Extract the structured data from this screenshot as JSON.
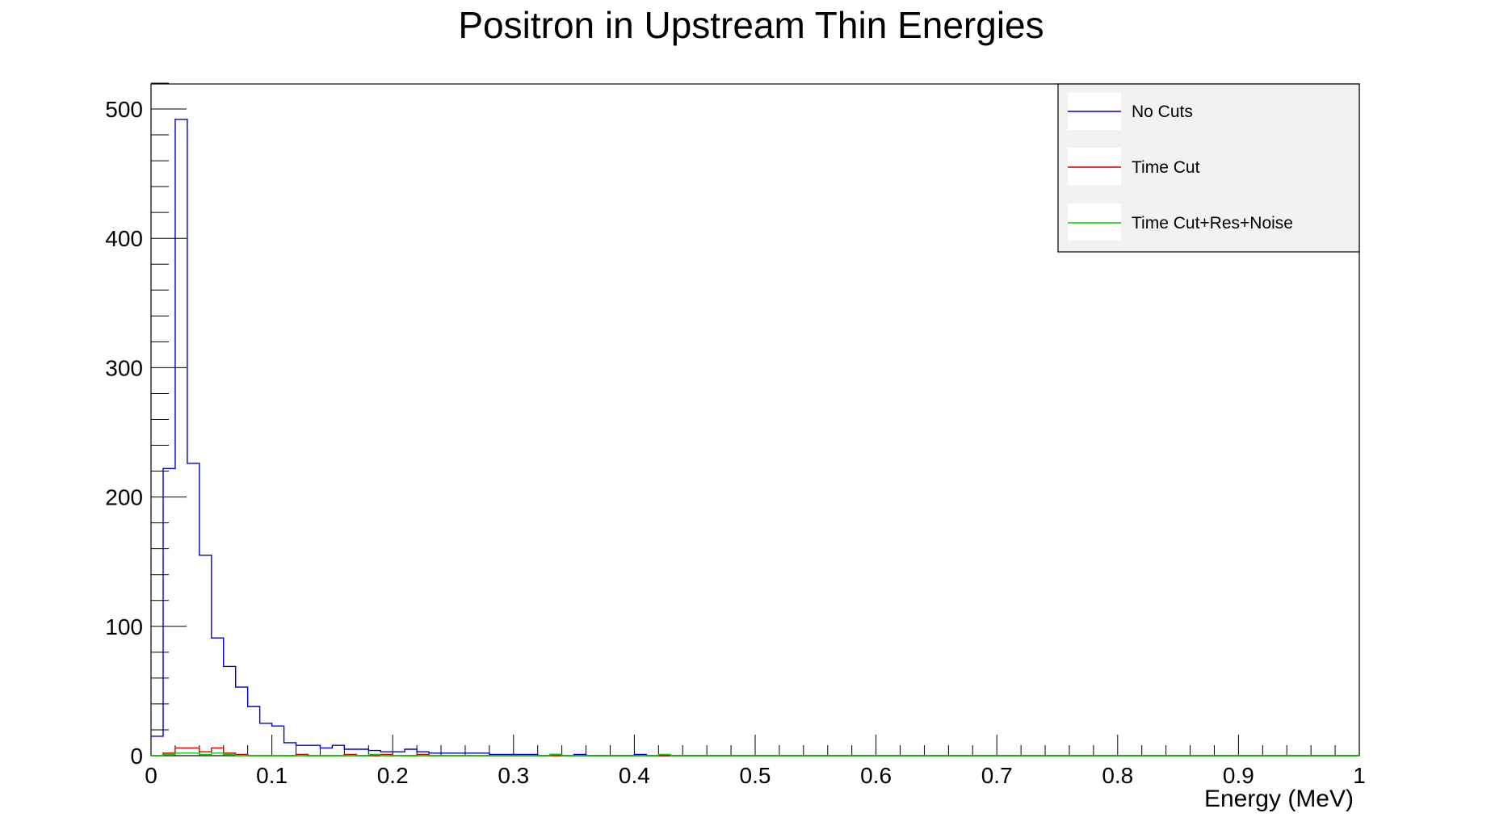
{
  "chart_data": {
    "type": "histogram",
    "title": "Positron in Upstream Thin Energies",
    "xlabel": "Energy (MeV)",
    "ylabel": "",
    "xlim": [
      0,
      1
    ],
    "ylim": [
      0,
      520
    ],
    "bin_width": 0.01,
    "x_ticks": [
      0,
      0.1,
      0.2,
      0.3,
      0.4,
      0.5,
      0.6,
      0.7,
      0.8,
      0.9,
      1
    ],
    "x_tick_labels": [
      "0",
      "0.1",
      "0.2",
      "0.3",
      "0.4",
      "0.5",
      "0.6",
      "0.7",
      "0.8",
      "0.9",
      "1"
    ],
    "y_ticks": [
      0,
      100,
      200,
      300,
      400,
      500
    ],
    "y_tick_labels": [
      "0",
      "100",
      "200",
      "300",
      "400",
      "500"
    ],
    "grid": false,
    "legend": {
      "position": "top-right",
      "entries": [
        {
          "label": "No Cuts",
          "color": "#0000cc"
        },
        {
          "label": "Time Cut",
          "color": "#cc0000"
        },
        {
          "label": "Time Cut+Res+Noise",
          "color": "#00cc00"
        }
      ]
    },
    "series": [
      {
        "name": "No Cuts",
        "color": "#0000cc",
        "values": [
          15,
          222,
          492,
          226,
          155,
          91,
          69,
          53,
          38,
          25,
          23,
          10,
          8,
          8,
          6,
          8,
          5,
          5,
          4,
          3,
          3,
          5,
          3,
          2,
          2,
          2,
          2,
          2,
          1,
          1,
          1,
          1,
          0,
          1,
          0,
          1,
          0,
          0,
          0,
          0,
          1,
          0,
          0,
          0,
          0,
          0,
          0,
          0,
          0,
          0,
          0,
          0,
          0,
          0,
          0,
          0,
          0,
          0,
          0,
          0,
          0,
          0,
          0,
          0,
          0,
          0,
          0,
          0,
          0,
          0,
          0,
          0,
          0,
          0,
          0,
          0,
          0,
          0,
          0,
          0,
          0,
          0,
          0,
          0,
          0,
          0,
          0,
          0,
          0,
          0,
          0,
          0,
          0,
          0,
          0,
          0,
          0,
          0,
          0,
          0
        ]
      },
      {
        "name": "Time Cut",
        "color": "#cc0000",
        "values": [
          0,
          2,
          6,
          6,
          3,
          6,
          2,
          1,
          0,
          0,
          0,
          0,
          1,
          0,
          0,
          0,
          1,
          0,
          0,
          1,
          0,
          0,
          1,
          0,
          0,
          0,
          0,
          0,
          0,
          0,
          0,
          0,
          0,
          0,
          0,
          0,
          0,
          0,
          0,
          0,
          0,
          0,
          0,
          0,
          0,
          0,
          0,
          0,
          0,
          0,
          0,
          0,
          0,
          0,
          0,
          0,
          0,
          0,
          0,
          0,
          0,
          0,
          0,
          0,
          0,
          0,
          0,
          0,
          0,
          0,
          0,
          0,
          0,
          0,
          0,
          0,
          0,
          0,
          0,
          0,
          0,
          0,
          0,
          0,
          0,
          0,
          0,
          0,
          0,
          0,
          0,
          0,
          0,
          0,
          0,
          0,
          0,
          0,
          0,
          0
        ]
      },
      {
        "name": "Time Cut+Res+Noise",
        "color": "#00cc00",
        "values": [
          0,
          1,
          2,
          2,
          1,
          2,
          1,
          0,
          0,
          0,
          0,
          0,
          0,
          0,
          0,
          0,
          0,
          0,
          1,
          0,
          0,
          0,
          0,
          0,
          0,
          0,
          0,
          0,
          0,
          0,
          0,
          0,
          0,
          1,
          0,
          0,
          0,
          0,
          0,
          0,
          0,
          0,
          1,
          0,
          0,
          0,
          0,
          0,
          0,
          0,
          0,
          0,
          0,
          0,
          0,
          0,
          0,
          0,
          0,
          0,
          0,
          0,
          0,
          0,
          0,
          0,
          0,
          0,
          0,
          0,
          0,
          0,
          0,
          0,
          0,
          0,
          0,
          0,
          0,
          0,
          0,
          0,
          0,
          0,
          0,
          0,
          0,
          0,
          0,
          0,
          0,
          0,
          0,
          0,
          0,
          0,
          0,
          0,
          0,
          0
        ]
      }
    ]
  }
}
